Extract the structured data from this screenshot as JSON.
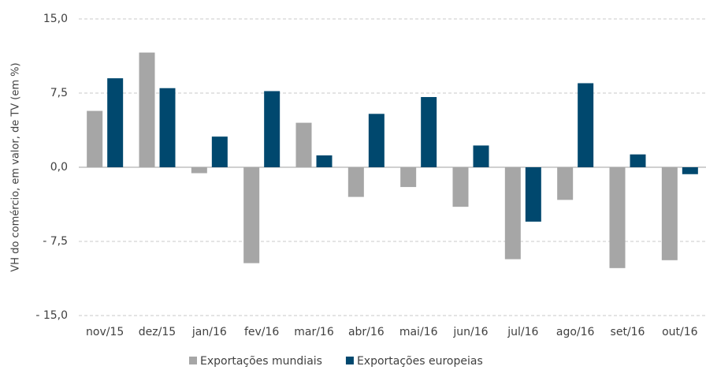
{
  "chart_data": {
    "type": "bar",
    "y_axis_label": "VH do comércio, em valor, de TV (em %)",
    "categories": [
      "nov/15",
      "dez/15",
      "jan/16",
      "fev/16",
      "mar/16",
      "abr/16",
      "mai/16",
      "jun/16",
      "jul/16",
      "ago/16",
      "set/16",
      "out/16"
    ],
    "series": [
      {
        "name": "Exportações mundiais",
        "color": "#a6a6a6",
        "values": [
          5.7,
          11.6,
          -0.6,
          -9.7,
          4.5,
          -3.0,
          -2.0,
          -4.0,
          -9.3,
          -3.3,
          -10.2,
          -9.4
        ]
      },
      {
        "name": "Exportações europeias",
        "color": "#00486e",
        "values": [
          9.0,
          8.0,
          3.1,
          7.7,
          1.2,
          5.4,
          7.1,
          2.2,
          -5.5,
          8.5,
          1.3,
          -0.7
        ]
      }
    ],
    "ylim": [
      -15,
      15
    ],
    "yticks": [
      {
        "value": -15,
        "label": "- 15,0"
      },
      {
        "value": -7.5,
        "label": "- 7,5"
      },
      {
        "value": 0,
        "label": "0,0"
      },
      {
        "value": 7.5,
        "label": "7,5"
      },
      {
        "value": 15,
        "label": "15,0"
      }
    ],
    "grid": true,
    "legend": "bottom"
  }
}
